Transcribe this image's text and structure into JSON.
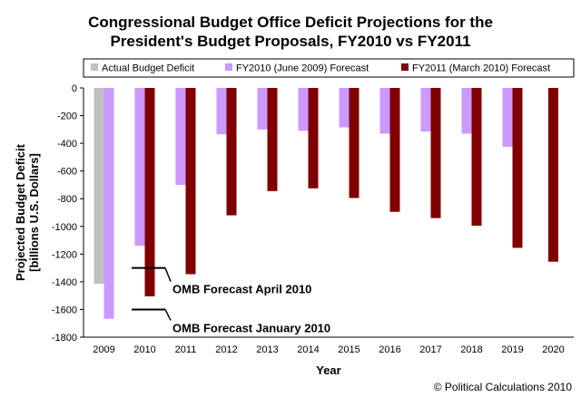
{
  "chart_data": {
    "type": "bar",
    "title_lines": [
      "Congressional Budget Office Deficit Projections for the",
      "President's Budget Proposals, FY2010 vs FY2011"
    ],
    "xlabel": "Year",
    "ylabel_lines": [
      "Projected Budget Deficit",
      "[billions U.S. Dollars]"
    ],
    "ylim": [
      -1800,
      0
    ],
    "yticks": [
      0,
      -200,
      -400,
      -600,
      -800,
      -1000,
      -1200,
      -1400,
      -1600,
      -1800
    ],
    "grid": false,
    "legend_position": "top",
    "categories": [
      "2009",
      "2010",
      "2011",
      "2012",
      "2013",
      "2014",
      "2015",
      "2016",
      "2017",
      "2018",
      "2019",
      "2020"
    ],
    "series": [
      {
        "name": "Actual Budget Deficit",
        "color": "#c0c0c0",
        "values": [
          -1414,
          null,
          null,
          null,
          null,
          null,
          null,
          null,
          null,
          null,
          null,
          null
        ]
      },
      {
        "name": "FY2010 (June 2009) Forecast",
        "color": "#cc99ff",
        "values": [
          -1667,
          -1140,
          -700,
          -335,
          -300,
          -310,
          -285,
          -330,
          -315,
          -330,
          -425,
          null
        ]
      },
      {
        "name": "FY2011 (March 2010) Forecast",
        "color": "#800000",
        "values": [
          null,
          -1505,
          -1345,
          -920,
          -745,
          -725,
          -795,
          -895,
          -940,
          -995,
          -1155,
          -1255
        ]
      }
    ],
    "annotations": [
      {
        "text": "OMB Forecast April 2010",
        "value": -1300
      },
      {
        "text": "OMB Forecast January 2010",
        "value": -1600
      }
    ]
  },
  "credit": "© Political Calculations 2010"
}
